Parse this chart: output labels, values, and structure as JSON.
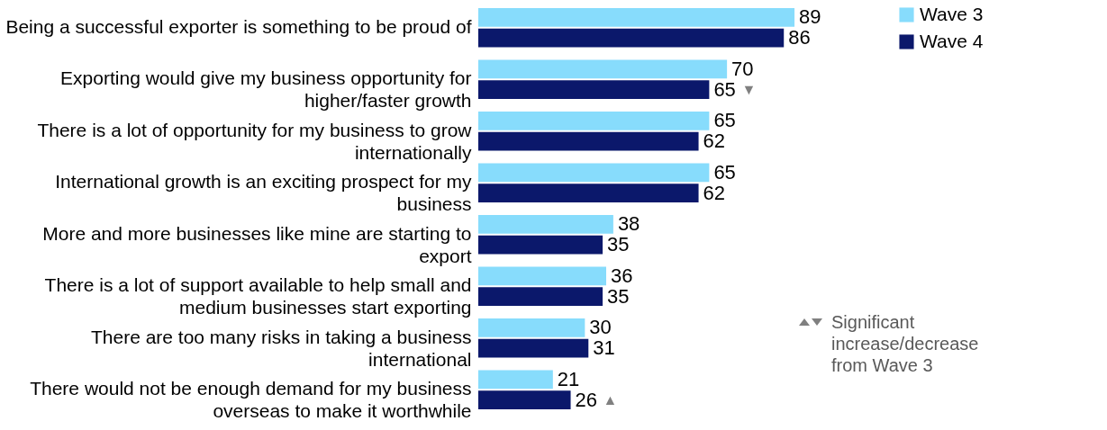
{
  "chart_data": {
    "type": "bar",
    "orientation": "horizontal",
    "data_labels": true,
    "legend": "top right",
    "categories": [
      "Being a successful exporter is something to be proud of",
      "Exporting would give my business opportunity for higher/faster growth",
      "There is a lot of opportunity for my business to grow internationally",
      "International growth is an exciting prospect for my business",
      "More and more businesses like mine are starting to export",
      "There is a lot of support available to help small and medium businesses start exporting",
      "There are too many risks in taking a business international",
      "There would not be enough demand for my business overseas to make it worthwhile"
    ],
    "series": [
      {
        "name": "Wave 3",
        "color": "#87dcfc",
        "values": [
          89,
          70,
          65,
          65,
          38,
          36,
          30,
          21
        ]
      },
      {
        "name": "Wave 4",
        "color": "#0b186b",
        "values": [
          86,
          65,
          62,
          62,
          35,
          35,
          31,
          26
        ]
      }
    ],
    "annotations": [
      {
        "text": "▼",
        "x": 65,
        "y": "Exporting would give my business opportunity for higher/faster growth"
      },
      {
        "text": "▲",
        "x": 26,
        "y": "There would not be enough demand for my business overseas to make it worthwhile"
      },
      "Significant increase/decrease from Wave 3"
    ]
  }
}
